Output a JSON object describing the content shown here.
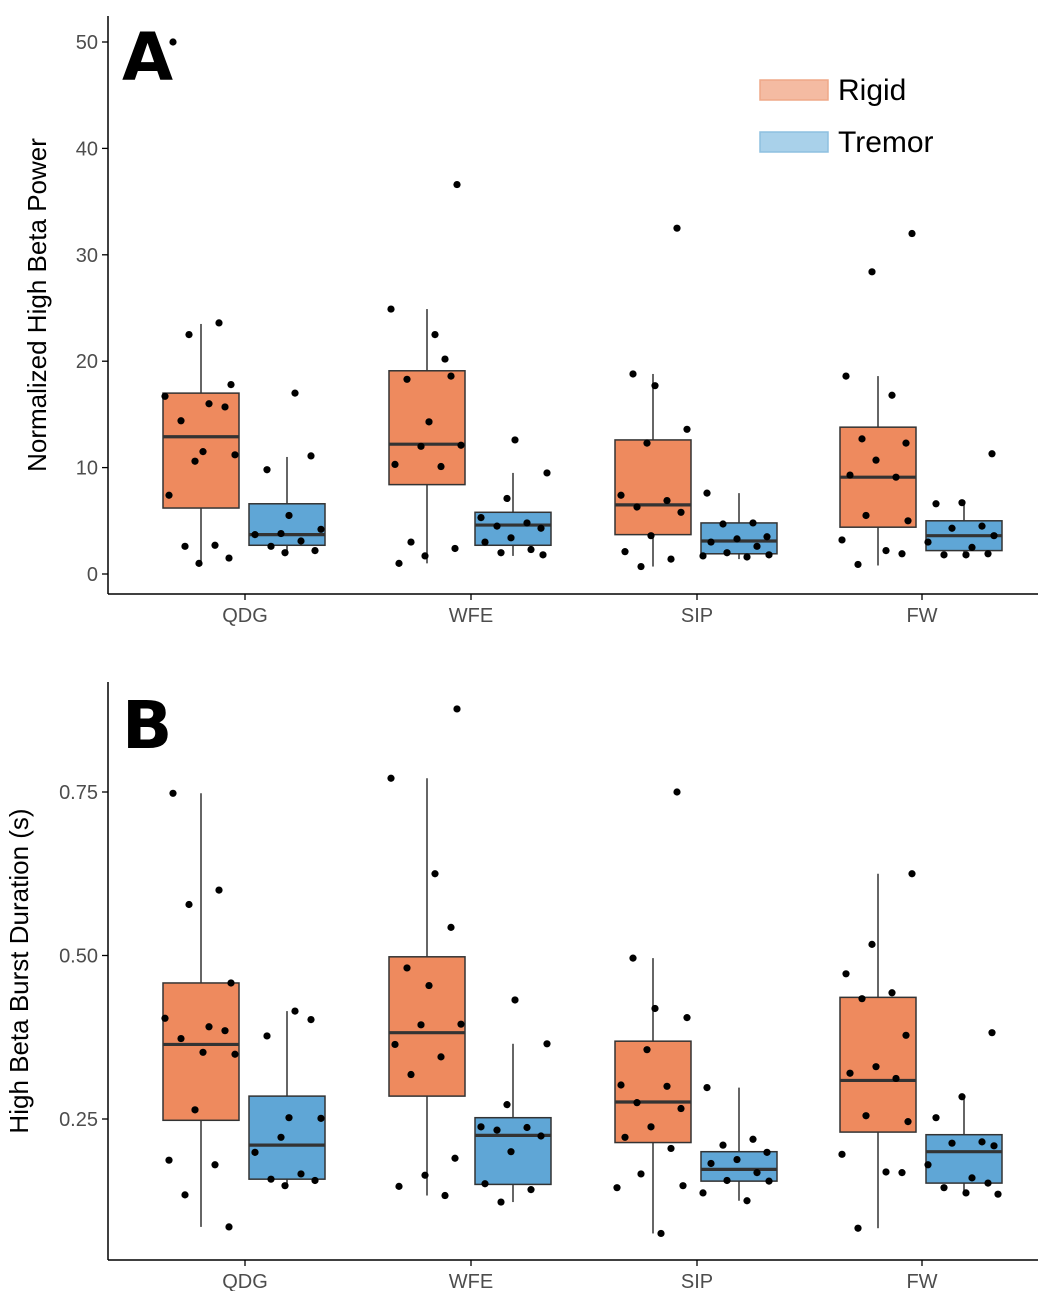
{
  "colors": {
    "rigid_fill": "#EE8A5E",
    "tremor_fill": "#5FA6D6",
    "rigid_legend": "#F4BBA2",
    "tremor_legend": "#A9D1EA",
    "box_stroke": "#333333",
    "point": "#000000",
    "axis": "#000000"
  },
  "legend": {
    "placement": "top-right",
    "entries": [
      "Rigid",
      "Tremor"
    ]
  },
  "chart_data": [
    {
      "type": "box",
      "panel": "A",
      "ylabel": "Normalized High Beta Power",
      "xlabel": "",
      "ylim": [
        0,
        50
      ],
      "yticks": [
        0,
        10,
        20,
        30,
        40,
        50
      ],
      "ytick_labels": [
        "0",
        "10",
        "20",
        "30",
        "40",
        "50"
      ],
      "categories": [
        "QDG",
        "WFE",
        "SIP",
        "FW"
      ],
      "grid": false,
      "series": [
        {
          "name": "Rigid",
          "boxes": [
            {
              "q1": 6.2,
              "median": 12.9,
              "q3": 17.0,
              "whisker_low": 0.9,
              "whisker_high": 23.5
            },
            {
              "q1": 8.4,
              "median": 12.2,
              "q3": 19.1,
              "whisker_low": 1.0,
              "whisker_high": 24.9
            },
            {
              "q1": 3.7,
              "median": 6.5,
              "q3": 12.6,
              "whisker_low": 0.7,
              "whisker_high": 18.8
            },
            {
              "q1": 4.4,
              "median": 9.1,
              "q3": 13.8,
              "whisker_low": 0.8,
              "whisker_high": 18.6
            }
          ],
          "points": [
            [
              50.0,
              23.6,
              22.5,
              17.8,
              16.7,
              16.0,
              15.7,
              14.4,
              11.5,
              11.2,
              10.6,
              7.4,
              2.7,
              2.6,
              1.5,
              1.0
            ],
            [
              36.6,
              24.9,
              22.5,
              18.6,
              18.3,
              14.3,
              12.1,
              12.0,
              10.3,
              10.1,
              3.0,
              2.4,
              1.7,
              1.0,
              20.2
            ],
            [
              32.5,
              18.8,
              17.7,
              13.6,
              12.3,
              7.4,
              6.9,
              6.3,
              5.8,
              3.6,
              2.1,
              1.4,
              0.7
            ],
            [
              32.0,
              28.4,
              18.6,
              16.8,
              12.7,
              12.3,
              10.7,
              9.3,
              9.1,
              5.5,
              5.0,
              3.2,
              2.2,
              1.9,
              0.9
            ]
          ]
        },
        {
          "name": "Tremor",
          "boxes": [
            {
              "q1": 2.7,
              "median": 3.7,
              "q3": 6.6,
              "whisker_low": 1.9,
              "whisker_high": 11.0
            },
            {
              "q1": 2.7,
              "median": 4.6,
              "q3": 5.8,
              "whisker_low": 1.7,
              "whisker_high": 9.5
            },
            {
              "q1": 1.9,
              "median": 3.1,
              "q3": 4.8,
              "whisker_low": 1.4,
              "whisker_high": 7.6
            },
            {
              "q1": 2.2,
              "median": 3.6,
              "q3": 5.0,
              "whisker_low": 1.7,
              "whisker_high": 6.7
            }
          ],
          "points": [
            [
              17.0,
              11.1,
              9.8,
              5.5,
              4.2,
              3.8,
              3.7,
              3.1,
              2.6,
              2.2,
              2.0
            ],
            [
              12.6,
              9.5,
              7.1,
              5.3,
              4.8,
              4.5,
              4.3,
              3.4,
              3.0,
              2.3,
              2.0,
              1.8
            ],
            [
              7.6,
              4.8,
              4.7,
              3.5,
              3.3,
              3.0,
              2.6,
              2.0,
              1.8,
              1.7,
              1.6
            ],
            [
              11.3,
              6.7,
              6.6,
              4.5,
              4.3,
              3.6,
              3.0,
              2.5,
              1.9,
              1.8,
              1.8
            ]
          ]
        }
      ]
    },
    {
      "type": "box",
      "panel": "B",
      "ylabel": "High Beta Burst Duration (s)",
      "xlabel": "",
      "ylim": [
        0.05,
        0.92
      ],
      "yticks": [
        0.25,
        0.5,
        0.75
      ],
      "ytick_labels": [
        "0.25",
        "0.50",
        "0.75"
      ],
      "categories": [
        "QDG",
        "WFE",
        "SIP",
        "FW"
      ],
      "grid": false,
      "series": [
        {
          "name": "Rigid",
          "boxes": [
            {
              "q1": 0.248,
              "median": 0.364,
              "q3": 0.458,
              "whisker_low": 0.085,
              "whisker_high": 0.748
            },
            {
              "q1": 0.285,
              "median": 0.382,
              "q3": 0.498,
              "whisker_low": 0.133,
              "whisker_high": 0.771
            },
            {
              "q1": 0.214,
              "median": 0.276,
              "q3": 0.369,
              "whisker_low": 0.075,
              "whisker_high": 0.496
            },
            {
              "q1": 0.23,
              "median": 0.309,
              "q3": 0.436,
              "whisker_low": 0.083,
              "whisker_high": 0.625
            }
          ],
          "points": [
            [
              0.748,
              0.6,
              0.578,
              0.458,
              0.404,
              0.391,
              0.385,
              0.373,
              0.352,
              0.349,
              0.264,
              0.187,
              0.18,
              0.134,
              0.085
            ],
            [
              0.877,
              0.771,
              0.625,
              0.543,
              0.481,
              0.454,
              0.395,
              0.394,
              0.364,
              0.345,
              0.318,
              0.19,
              0.164,
              0.147,
              0.133
            ],
            [
              0.75,
              0.496,
              0.419,
              0.405,
              0.356,
              0.302,
              0.3,
              0.275,
              0.266,
              0.238,
              0.222,
              0.205,
              0.166,
              0.148,
              0.145,
              0.075
            ],
            [
              0.625,
              0.517,
              0.472,
              0.443,
              0.434,
              0.378,
              0.33,
              0.32,
              0.312,
              0.255,
              0.246,
              0.196,
              0.169,
              0.168,
              0.083
            ]
          ]
        },
        {
          "name": "Tremor",
          "boxes": [
            {
              "q1": 0.158,
              "median": 0.21,
              "q3": 0.285,
              "whisker_low": 0.148,
              "whisker_high": 0.415
            },
            {
              "q1": 0.15,
              "median": 0.225,
              "q3": 0.252,
              "whisker_low": 0.123,
              "whisker_high": 0.365
            },
            {
              "q1": 0.155,
              "median": 0.173,
              "q3": 0.2,
              "whisker_low": 0.125,
              "whisker_high": 0.298
            },
            {
              "q1": 0.152,
              "median": 0.2,
              "q3": 0.226,
              "whisker_low": 0.137,
              "whisker_high": 0.283
            }
          ],
          "points": [
            [
              0.415,
              0.402,
              0.377,
              0.252,
              0.251,
              0.222,
              0.199,
              0.166,
              0.158,
              0.156,
              0.148
            ],
            [
              0.432,
              0.365,
              0.272,
              0.238,
              0.237,
              0.233,
              0.224,
              0.2,
              0.151,
              0.142,
              0.123
            ],
            [
              0.298,
              0.219,
              0.21,
              0.199,
              0.188,
              0.182,
              0.168,
              0.156,
              0.155,
              0.137,
              0.125
            ],
            [
              0.382,
              0.284,
              0.252,
              0.215,
              0.213,
              0.209,
              0.18,
              0.16,
              0.152,
              0.145,
              0.137,
              0.135
            ]
          ]
        }
      ]
    }
  ]
}
